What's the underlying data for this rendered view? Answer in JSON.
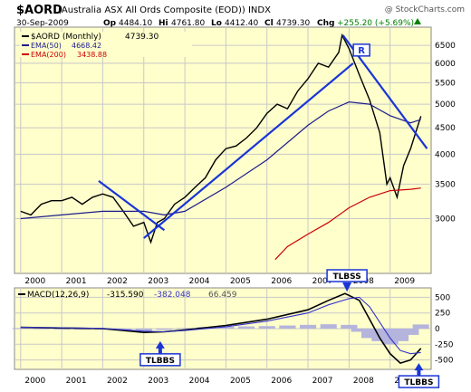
{
  "header": {
    "symbol": "$AORD",
    "description": "(Australia ASX All Ords Composite (EOD)) INDX",
    "credit": "@ StockCharts.com",
    "date": "30-Sep-2009",
    "op_label": "Op",
    "op": "4484.10",
    "hi_label": "Hi",
    "hi": "4761.80",
    "lo_label": "Lo",
    "lo": "4412.40",
    "cl_label": "Cl",
    "cl": "4739.30",
    "chg_label": "Chg",
    "chg": "+255.20 (+5.69%)",
    "chg_arrow": "up-arrow"
  },
  "colors": {
    "panel_bg": "#ffffcc",
    "grid": "#c8c8c8",
    "price": "#000000",
    "ema50": "#1c1c8a",
    "ema200": "#cc0000",
    "trendline": "#1a35d6",
    "macd": "#000000",
    "signal": "#3434c8",
    "histogram": "#b4b4dc",
    "callout_border": "#1a35d6",
    "chg_up": "#008000"
  },
  "chart_data": [
    {
      "type": "line",
      "title": "$AORD (Monthly) 4739.30",
      "series": [
        {
          "name": "$AORD (Monthly)",
          "value_label": "4739.30",
          "x": [
            2000.0,
            2000.25,
            2000.5,
            2000.75,
            2001.0,
            2001.25,
            2001.5,
            2001.75,
            2002.0,
            2002.25,
            2002.5,
            2002.75,
            2003.0,
            2003.17,
            2003.33,
            2003.5,
            2003.75,
            2004.0,
            2004.25,
            2004.5,
            2004.75,
            2005.0,
            2005.25,
            2005.5,
            2005.75,
            2006.0,
            2006.25,
            2006.5,
            2006.75,
            2007.0,
            2007.25,
            2007.5,
            2007.75,
            2007.83,
            2008.0,
            2008.25,
            2008.5,
            2008.75,
            2008.92,
            2009.0,
            2009.17,
            2009.33,
            2009.5,
            2009.75
          ],
          "values": [
            3100,
            3050,
            3200,
            3250,
            3250,
            3300,
            3200,
            3300,
            3350,
            3300,
            3100,
            2900,
            2950,
            2700,
            2950,
            3000,
            3200,
            3300,
            3450,
            3600,
            3900,
            4100,
            4150,
            4300,
            4500,
            4800,
            5000,
            4900,
            5300,
            5600,
            6000,
            5900,
            6300,
            6800,
            6400,
            5700,
            5100,
            4400,
            3500,
            3600,
            3300,
            3800,
            4100,
            4739.3
          ],
          "color": "#000000"
        },
        {
          "name": "EMA(50)",
          "value_label": "4668.42",
          "x": [
            2000.0,
            2001.0,
            2002.0,
            2003.0,
            2003.5,
            2004.0,
            2005.0,
            2006.0,
            2007.0,
            2007.5,
            2008.0,
            2008.5,
            2009.0,
            2009.5,
            2009.75
          ],
          "values": [
            3000,
            3050,
            3100,
            3100,
            3050,
            3100,
            3450,
            3900,
            4550,
            4850,
            5050,
            5000,
            4750,
            4600,
            4668.42
          ],
          "color": "#1c1c8a"
        },
        {
          "name": "EMA(200)",
          "value_label": "3438.88",
          "x": [
            2006.2,
            2006.5,
            2007.0,
            2007.5,
            2008.0,
            2008.5,
            2009.0,
            2009.5,
            2009.75
          ],
          "values": [
            2500,
            2650,
            2800,
            2950,
            3150,
            3300,
            3400,
            3420,
            3438.88
          ],
          "color": "#cc0000"
        }
      ],
      "trendlines": [
        {
          "x": [
            2001.9,
            2003.5
          ],
          "values": [
            3550,
            2850
          ]
        },
        {
          "x": [
            2003.0,
            2008.1
          ],
          "values": [
            2750,
            6000
          ]
        },
        {
          "x": [
            2007.85,
            2009.9
          ],
          "values": [
            6800,
            4100
          ]
        }
      ],
      "annotations": [
        {
          "text": "R",
          "x": 2008.15,
          "y": 6300
        }
      ],
      "x_ticks": [
        2000,
        2001,
        2002,
        2003,
        2004,
        2005,
        2006,
        2007,
        2008,
        2009
      ],
      "x_tick_labels": [
        "2000",
        "2001",
        "2002",
        "2003",
        "2004",
        "2005",
        "2006",
        "2007",
        "2008",
        "2009"
      ],
      "y_ticks": [
        3000,
        3500,
        4000,
        4500,
        5000,
        5500,
        6000,
        6500
      ],
      "y_tick_labels": [
        "3000",
        "3500",
        "4000",
        "4500",
        "5000",
        "5500",
        "6000",
        "6500"
      ],
      "xlim": [
        1999.85,
        2010.0
      ],
      "ylim": [
        2350,
        7050
      ],
      "y_scale": "log",
      "grid": true,
      "legend_position": "top-left"
    },
    {
      "type": "line",
      "title": "MACD(12,26,9)",
      "macd_values": [
        "-315.590",
        "-382.048",
        "66.459"
      ],
      "series": [
        {
          "name": "MACD",
          "x": [
            2000.0,
            2001.0,
            2002.0,
            2002.5,
            2003.0,
            2003.5,
            2004.0,
            2005.0,
            2006.0,
            2007.0,
            2007.5,
            2007.9,
            2008.25,
            2008.5,
            2008.75,
            2009.0,
            2009.25,
            2009.5,
            2009.75
          ],
          "values": [
            20,
            10,
            0,
            -30,
            -60,
            -50,
            -20,
            50,
            150,
            300,
            450,
            560,
            450,
            150,
            -150,
            -400,
            -550,
            -500,
            -315.59
          ],
          "color": "#000000"
        },
        {
          "name": "Signal",
          "x": [
            2000.0,
            2001.0,
            2002.0,
            2003.0,
            2003.5,
            2004.0,
            2005.0,
            2006.0,
            2007.0,
            2007.5,
            2008.0,
            2008.25,
            2008.5,
            2008.75,
            2009.0,
            2009.25,
            2009.5,
            2009.75
          ],
          "values": [
            20,
            15,
            5,
            -40,
            -50,
            -30,
            30,
            120,
            250,
            380,
            480,
            500,
            350,
            100,
            -150,
            -350,
            -400,
            -382.05
          ],
          "color": "#3434c8"
        }
      ],
      "histogram": {
        "x": [
          2000.0,
          2000.5,
          2001.0,
          2001.5,
          2002.0,
          2002.5,
          2003.0,
          2003.5,
          2004.0,
          2004.5,
          2005.0,
          2005.5,
          2006.0,
          2006.5,
          2007.0,
          2007.5,
          2008.0,
          2008.25,
          2008.5,
          2008.75,
          2009.0,
          2009.25,
          2009.5,
          2009.75
        ],
        "values": [
          10,
          5,
          -5,
          -10,
          -15,
          -30,
          -40,
          -20,
          10,
          25,
          30,
          35,
          40,
          50,
          60,
          70,
          60,
          -50,
          -150,
          -200,
          -250,
          -200,
          -100,
          66.46
        ]
      },
      "annotations": [
        {
          "text": "TLBBS",
          "x": 2003.4,
          "y": -200
        },
        {
          "text": "TLBSS",
          "x": 2007.95,
          "y": 560
        },
        {
          "text": "TLBBS",
          "x": 2009.7,
          "y": -550
        }
      ],
      "x_ticks": [
        2000,
        2001,
        2002,
        2003,
        2004,
        2005,
        2006,
        2007,
        2008,
        2009
      ],
      "x_tick_labels": [
        "2000",
        "2001",
        "2002",
        "2003",
        "2004",
        "2005",
        "2006",
        "2007",
        "2008",
        "2009"
      ],
      "y_ticks": [
        500,
        250,
        0,
        -250,
        -500
      ],
      "y_tick_labels": [
        "500",
        "250",
        "0",
        "-250",
        "-500"
      ],
      "xlim": [
        1999.85,
        2010.0
      ],
      "ylim": [
        -650,
        650
      ],
      "grid": true,
      "legend_position": "top-left"
    }
  ]
}
